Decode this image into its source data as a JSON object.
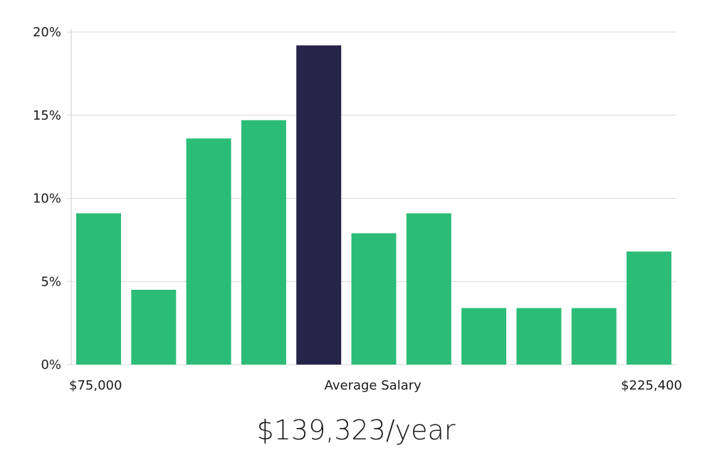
{
  "chart_data": {
    "type": "bar",
    "title": "",
    "xlabel": "Average Salary",
    "ylabel": "",
    "ylim": [
      0,
      20
    ],
    "yticks": [
      0,
      5,
      10,
      15,
      20
    ],
    "ytick_labels": [
      "0%",
      "5%",
      "10%",
      "15%",
      "20%"
    ],
    "x_range_labels": {
      "min": "$75,000",
      "max": "$225,400"
    },
    "values": [
      9.1,
      4.5,
      13.6,
      14.7,
      19.2,
      7.9,
      9.1,
      3.4,
      3.4,
      3.4,
      6.8
    ],
    "highlight_index": 4,
    "grid": true,
    "colors": {
      "bar": "#2bbd77",
      "highlight": "#27244a",
      "grid": "#d9d9d9",
      "axis": "#cccccc"
    }
  },
  "summary": {
    "average_salary_text": "$139,323/year"
  }
}
